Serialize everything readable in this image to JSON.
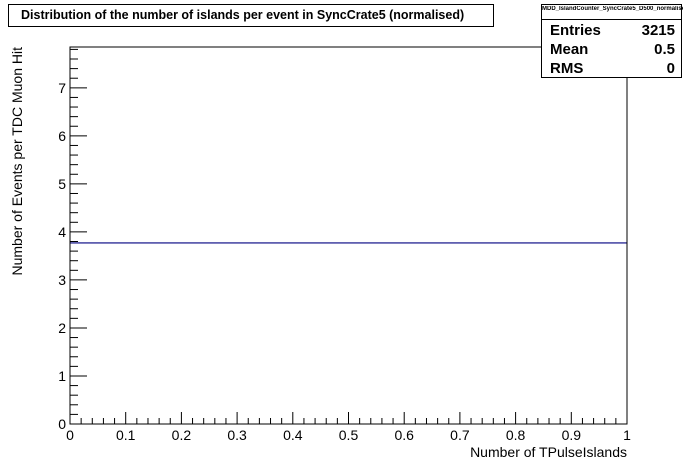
{
  "title": "Distribution of the number of islands per event in SyncCrate5 (normalised)",
  "stats": {
    "name": "MDD_IslandCounter_SyncCrate5_D500_normalised",
    "rows": [
      {
        "label": "Entries",
        "value": "3215"
      },
      {
        "label": "Mean",
        "value": "0.5"
      },
      {
        "label": "RMS",
        "value": "0"
      }
    ]
  },
  "colors": {
    "line": "#000080",
    "axis": "#000000"
  },
  "chart_data": {
    "type": "line",
    "xlabel": "Number of TPulseIslands",
    "ylabel": "Number of Events per TDC Muon Hit",
    "xlim": [
      0,
      1
    ],
    "ylim": [
      0,
      7.85
    ],
    "x_ticks": [
      "0",
      "0.1",
      "0.2",
      "0.3",
      "0.4",
      "0.5",
      "0.6",
      "0.7",
      "0.8",
      "0.9",
      "1"
    ],
    "y_ticks": [
      "0",
      "1",
      "2",
      "3",
      "4",
      "5",
      "6",
      "7"
    ],
    "series": [
      {
        "x": [
          0,
          1
        ],
        "y": [
          3.77,
          3.77
        ]
      }
    ],
    "grid": false,
    "legend": "none"
  }
}
